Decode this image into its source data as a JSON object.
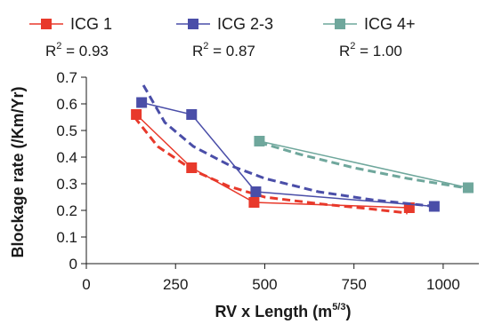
{
  "chart_data": {
    "type": "line",
    "xlabel": "RV x Length (m",
    "xlabel_superscript": "5/3",
    "xlabel_suffix": ")",
    "ylabel": "Blockage rate (/Km/Yr)",
    "xlim": [
      0,
      1100
    ],
    "ylim": [
      0,
      0.7
    ],
    "xticks": [
      0,
      250,
      500,
      750,
      1000
    ],
    "yticks": [
      0,
      0.1,
      0.2,
      0.3,
      0.4,
      0.5,
      0.6,
      0.7
    ],
    "grid": false,
    "legend_position": "top",
    "series": [
      {
        "name": "ICG 1",
        "color": "#e8392b",
        "r2_label": "R",
        "r2_value": " = 0.93",
        "points": [
          [
            140,
            0.56
          ],
          [
            295,
            0.36
          ],
          [
            470,
            0.23
          ],
          [
            905,
            0.21
          ]
        ],
        "trend": [
          [
            135,
            0.55
          ],
          [
            200,
            0.44
          ],
          [
            300,
            0.35
          ],
          [
            400,
            0.29
          ],
          [
            500,
            0.25
          ],
          [
            650,
            0.225
          ],
          [
            800,
            0.205
          ],
          [
            900,
            0.19
          ]
        ]
      },
      {
        "name": "ICG 2-3",
        "color": "#4a4ea8",
        "r2_label": "R",
        "r2_value": " = 0.87",
        "points": [
          [
            155,
            0.605
          ],
          [
            295,
            0.56
          ],
          [
            475,
            0.27
          ],
          [
            975,
            0.215
          ]
        ],
        "trend": [
          [
            160,
            0.67
          ],
          [
            220,
            0.53
          ],
          [
            300,
            0.44
          ],
          [
            400,
            0.37
          ],
          [
            500,
            0.32
          ],
          [
            650,
            0.27
          ],
          [
            800,
            0.24
          ],
          [
            975,
            0.215
          ]
        ]
      },
      {
        "name": "ICG 4+",
        "color": "#6fa79c",
        "r2_label": "R",
        "r2_value": " = 1.00",
        "points": [
          [
            485,
            0.46
          ],
          [
            1070,
            0.285
          ]
        ],
        "trend": [
          [
            485,
            0.455
          ],
          [
            600,
            0.41
          ],
          [
            750,
            0.36
          ],
          [
            900,
            0.32
          ],
          [
            1060,
            0.285
          ]
        ]
      }
    ]
  }
}
